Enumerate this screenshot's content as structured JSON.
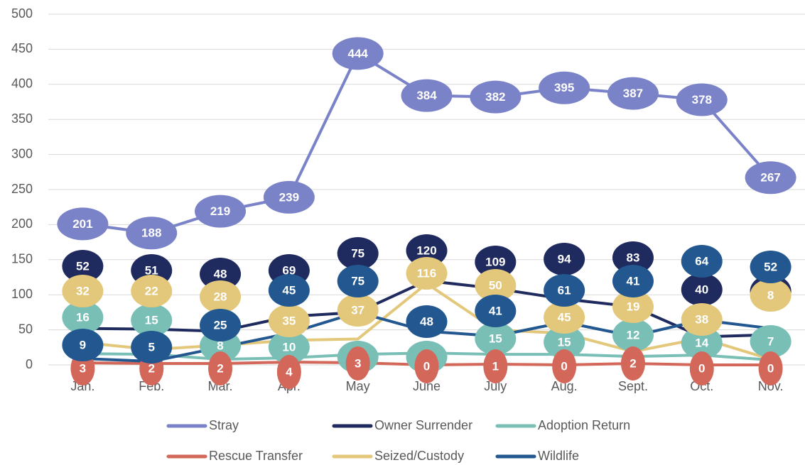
{
  "chart_data": {
    "type": "line",
    "categories": [
      "Jan.",
      "Feb.",
      "Mar.",
      "Apr.",
      "May",
      "June",
      "July",
      "Aug.",
      "Sept.",
      "Oct.",
      "Nov."
    ],
    "series": [
      {
        "name": "Stray",
        "color": "#7b83c8",
        "values": [
          201,
          188,
          219,
          239,
          444,
          384,
          382,
          395,
          387,
          378,
          267
        ]
      },
      {
        "name": "Owner Surrender",
        "color": "#1f2a5e",
        "values": [
          52,
          51,
          48,
          69,
          75,
          120,
          109,
          94,
          83,
          40,
          43
        ]
      },
      {
        "name": "Adoption Return",
        "color": "#79bfb6",
        "values": [
          16,
          15,
          8,
          10,
          15,
          17,
          15,
          15,
          12,
          14,
          7
        ]
      },
      {
        "name": "Rescue Transfer",
        "color": "#d2675a",
        "values": [
          3,
          2,
          2,
          4,
          3,
          0,
          1,
          0,
          2,
          0,
          0
        ]
      },
      {
        "name": "Seized/Custody",
        "color": "#e3c77a",
        "values": [
          32,
          22,
          28,
          35,
          37,
          116,
          50,
          45,
          19,
          38,
          8
        ]
      },
      {
        "name": "Wildlife",
        "color": "#22578f",
        "values": [
          9,
          5,
          25,
          45,
          75,
          48,
          41,
          61,
          41,
          64,
          52
        ]
      }
    ],
    "ylim": [
      0,
      500
    ],
    "yticks": [
      0,
      50,
      100,
      150,
      200,
      250,
      300,
      350,
      400,
      450,
      500
    ],
    "grid": true,
    "legend": "bottom"
  }
}
